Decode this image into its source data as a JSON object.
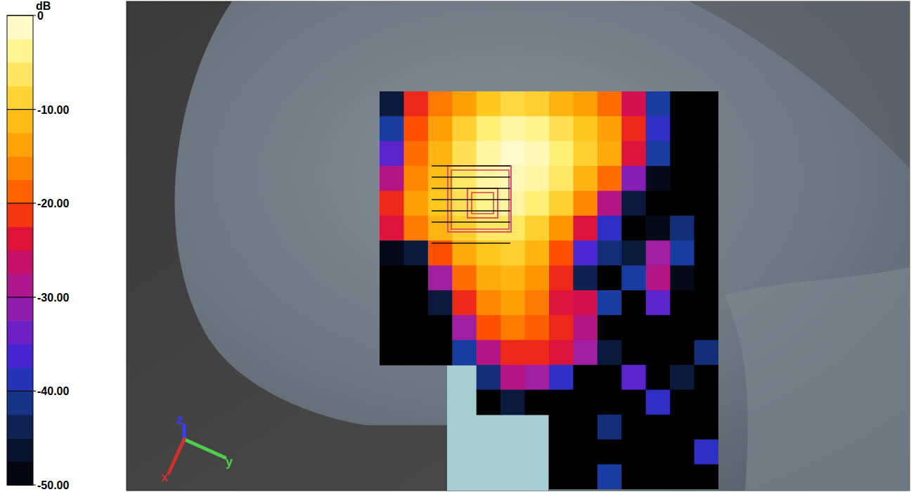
{
  "chart_data": {
    "type": "heatmap",
    "colorbar_label": "dB",
    "colorbar_range": [
      -50,
      0
    ],
    "colorbar_ticks": [
      0,
      {
        "value": -10,
        "label": "-10.00"
      },
      {
        "value": -20,
        "label": "-20.00"
      },
      {
        "value": -30,
        "label": "-30.00"
      },
      {
        "value": -40,
        "label": "-40.00"
      },
      {
        "value": -50,
        "label": "-50.00"
      }
    ],
    "tick_labels": false,
    "annotations": [
      "z",
      "y",
      "x"
    ],
    "cells": [
      [
        -45,
        -22,
        -17,
        -14,
        -10,
        -8,
        -9,
        -12,
        -14,
        -18,
        -25,
        -40,
        -50,
        -50
      ],
      [
        -40,
        -20,
        -14,
        -9,
        -5,
        -3,
        -4,
        -7,
        -10,
        -14,
        -22,
        -38,
        -50,
        -50
      ],
      [
        -35,
        -18,
        -12,
        -7,
        -3,
        -1,
        -2,
        -5,
        -9,
        -13,
        -24,
        -40,
        -50,
        -50
      ],
      [
        -28,
        -16,
        -11,
        -6,
        -3,
        -2,
        -3,
        -6,
        -12,
        -18,
        -32,
        -48,
        -50,
        -50
      ],
      [
        -22,
        -14,
        -10,
        -7,
        -4,
        -3,
        -5,
        -9,
        -16,
        -28,
        -45,
        -50,
        -50,
        -50
      ],
      [
        -24,
        -17,
        -12,
        -9,
        -6,
        -6,
        -9,
        -15,
        -24,
        -38,
        -50,
        -48,
        -42,
        -50
      ],
      [
        -48,
        -45,
        -20,
        -13,
        -10,
        -9,
        -12,
        -20,
        -36,
        -42,
        -45,
        -30,
        -40,
        -50
      ],
      [
        -50,
        -50,
        -30,
        -18,
        -13,
        -12,
        -15,
        -22,
        -44,
        -50,
        -40,
        -28,
        -48,
        -50
      ],
      [
        -50,
        -50,
        -45,
        -22,
        -16,
        -14,
        -17,
        -24,
        -25,
        -40,
        -50,
        -35,
        -50,
        -50
      ],
      [
        -50,
        -50,
        -50,
        -30,
        -20,
        -17,
        -19,
        -22,
        -28,
        -50,
        -50,
        -50,
        -50,
        -50
      ],
      [
        -50,
        -50,
        -50,
        -40,
        -28,
        -22,
        -22,
        -24,
        -30,
        -45,
        -50,
        -50,
        -50,
        -42
      ],
      [
        null,
        null,
        null,
        null,
        -42,
        -28,
        -30,
        -38,
        -50,
        -50,
        -35,
        -50,
        -45,
        -50
      ],
      [
        null,
        null,
        null,
        null,
        -50,
        -45,
        -50,
        -50,
        -50,
        -50,
        -50,
        -38,
        -50,
        -50
      ],
      [
        null,
        null,
        null,
        null,
        null,
        null,
        null,
        -50,
        -50,
        -42,
        -50,
        -50,
        -50,
        -50
      ],
      [
        null,
        null,
        null,
        null,
        null,
        null,
        null,
        -50,
        -50,
        -50,
        -50,
        -50,
        -50,
        -38
      ],
      [
        null,
        null,
        null,
        null,
        null,
        null,
        null,
        -50,
        -50,
        -40,
        -50,
        -50,
        -50,
        -50
      ]
    ]
  }
}
